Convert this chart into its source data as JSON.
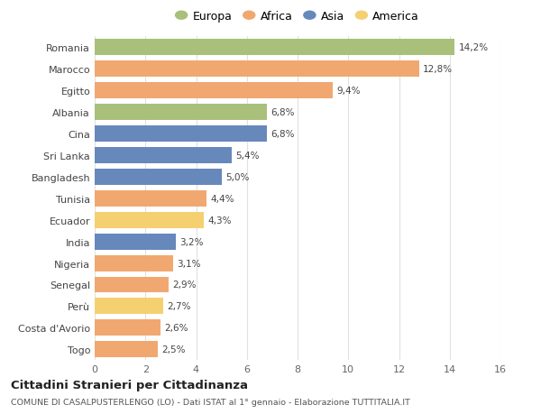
{
  "countries": [
    "Romania",
    "Marocco",
    "Egitto",
    "Albania",
    "Cina",
    "Sri Lanka",
    "Bangladesh",
    "Tunisia",
    "Ecuador",
    "India",
    "Nigeria",
    "Senegal",
    "Perù",
    "Costa d'Avorio",
    "Togo"
  ],
  "values": [
    14.2,
    12.8,
    9.4,
    6.8,
    6.8,
    5.4,
    5.0,
    4.4,
    4.3,
    3.2,
    3.1,
    2.9,
    2.7,
    2.6,
    2.5
  ],
  "labels": [
    "14,2%",
    "12,8%",
    "9,4%",
    "6,8%",
    "6,8%",
    "5,4%",
    "5,0%",
    "4,4%",
    "4,3%",
    "3,2%",
    "3,1%",
    "2,9%",
    "2,7%",
    "2,6%",
    "2,5%"
  ],
  "continents": [
    "Europa",
    "Africa",
    "Africa",
    "Europa",
    "Asia",
    "Asia",
    "Asia",
    "Africa",
    "America",
    "Asia",
    "Africa",
    "Africa",
    "America",
    "Africa",
    "Africa"
  ],
  "colors": {
    "Europa": "#a8c07a",
    "Africa": "#f0a870",
    "Asia": "#6688bb",
    "America": "#f5d070"
  },
  "legend_order": [
    "Europa",
    "Africa",
    "Asia",
    "America"
  ],
  "title": "Cittadini Stranieri per Cittadinanza",
  "subtitle": "COMUNE DI CASALPUSTERLENGO (LO) - Dati ISTAT al 1° gennaio - Elaborazione TUTTITALIA.IT",
  "xlim": [
    0,
    16
  ],
  "xticks": [
    0,
    2,
    4,
    6,
    8,
    10,
    12,
    14,
    16
  ],
  "bg_color": "#ffffff",
  "grid_color": "#e0e0e0"
}
